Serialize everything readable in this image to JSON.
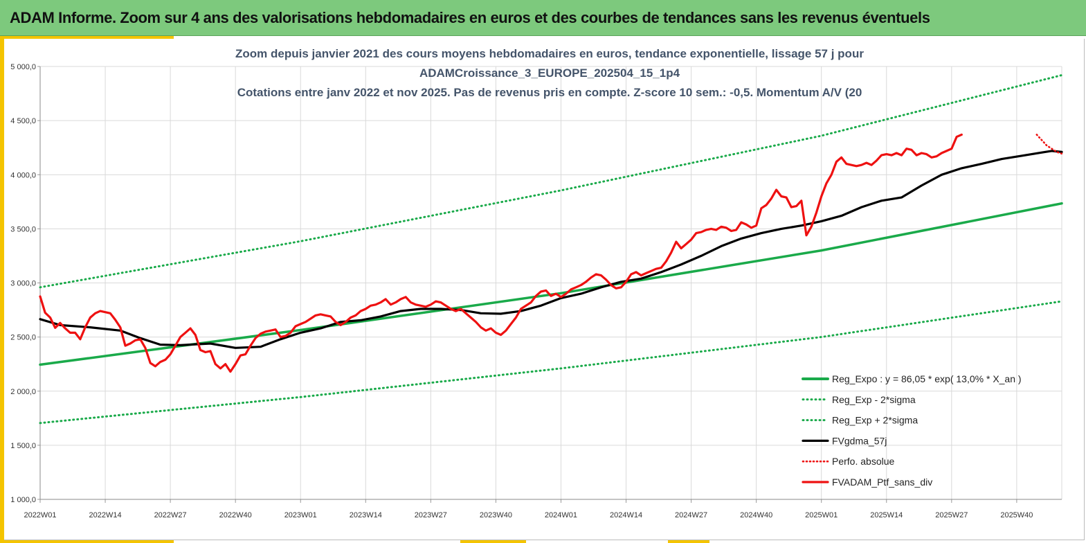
{
  "banner": {
    "title": "ADAM Informe. Zoom sur 4 ans des valorisations hebdomadaires en euros et des courbes de tendances sans les revenus éventuels"
  },
  "colors": {
    "banner_bg": "#7dc97d",
    "accent": "#f4c400",
    "trend": "#1aaa4a",
    "smooth": "#000000",
    "portfolio": "#ee1111",
    "title_text": "#44546a"
  },
  "chart_data": {
    "type": "line",
    "title_lines": [
      "Zoom depuis janvier 2021 des cours moyens hebdomadaires  en euros, tendance exponentielle, lissage 57 j pour",
      "ADAMCroissance_3_EUROPE_202504_15_1p4",
      "Cotations  entre janv 2022 et nov 2025. Pas de revenus pris en compte. Z-score 10 sem.: -0,5. Momentum A/V (20"
    ],
    "x_tick_labels": [
      "2022W01",
      "2022W14",
      "2022W27",
      "2022W40",
      "2023W01",
      "2023W14",
      "2023W27",
      "2023W40",
      "2024W01",
      "2024W14",
      "2024W27",
      "2024W40",
      "2025W01",
      "2025W14",
      "2025W27",
      "2025W40"
    ],
    "x_tick_weeks": [
      0,
      13,
      26,
      39,
      52,
      65,
      78,
      91,
      104,
      117,
      130,
      143,
      156,
      169,
      182,
      195
    ],
    "x_range_weeks": [
      0,
      204
    ],
    "y_tick_labels": [
      "1 000,0",
      "1 500,0",
      "2 000,0",
      "2 500,0",
      "3 000,0",
      "3 500,0",
      "4 000,0",
      "4 500,0",
      "5 000,0"
    ],
    "y_tick_values": [
      1000,
      1500,
      2000,
      2500,
      3000,
      3500,
      4000,
      4500,
      5000
    ],
    "ylim": [
      1000,
      5000
    ],
    "grid": true,
    "legend_position": "bottom-right",
    "series": [
      {
        "name": "Reg_Expo : y = 86,05 * exp( 13,0% *  X_an )",
        "key": "reg",
        "style": "solid",
        "color": "#1aaa4a",
        "points": [
          [
            0,
            2245
          ],
          [
            52,
            2565
          ],
          [
            104,
            2905
          ],
          [
            156,
            3300
          ],
          [
            204,
            3735
          ]
        ]
      },
      {
        "name": "Reg_Exp - 2*sigma",
        "key": "reg_minus",
        "style": "dotted",
        "color": "#1aaa4a",
        "points": [
          [
            0,
            1705
          ],
          [
            52,
            1945
          ],
          [
            104,
            2210
          ],
          [
            156,
            2500
          ],
          [
            204,
            2830
          ]
        ]
      },
      {
        "name": "Reg_Exp + 2*sigma",
        "key": "reg_plus",
        "style": "dotted",
        "color": "#1aaa4a",
        "points": [
          [
            0,
            2960
          ],
          [
            52,
            3385
          ],
          [
            104,
            3855
          ],
          [
            156,
            4360
          ],
          [
            204,
            4920
          ]
        ]
      },
      {
        "name": "FVgdma_57j",
        "key": "smooth",
        "style": "solid",
        "color": "#000000",
        "points": [
          [
            0,
            2665
          ],
          [
            4,
            2610
          ],
          [
            10,
            2590
          ],
          [
            16,
            2560
          ],
          [
            20,
            2490
          ],
          [
            24,
            2430
          ],
          [
            28,
            2425
          ],
          [
            34,
            2440
          ],
          [
            39,
            2400
          ],
          [
            44,
            2410
          ],
          [
            48,
            2480
          ],
          [
            52,
            2540
          ],
          [
            56,
            2580
          ],
          [
            60,
            2640
          ],
          [
            64,
            2655
          ],
          [
            68,
            2690
          ],
          [
            72,
            2740
          ],
          [
            76,
            2760
          ],
          [
            80,
            2760
          ],
          [
            84,
            2750
          ],
          [
            88,
            2720
          ],
          [
            92,
            2715
          ],
          [
            96,
            2740
          ],
          [
            100,
            2790
          ],
          [
            104,
            2860
          ],
          [
            108,
            2900
          ],
          [
            112,
            2960
          ],
          [
            116,
            3010
          ],
          [
            120,
            3040
          ],
          [
            124,
            3100
          ],
          [
            128,
            3170
          ],
          [
            132,
            3250
          ],
          [
            136,
            3340
          ],
          [
            140,
            3410
          ],
          [
            144,
            3460
          ],
          [
            148,
            3500
          ],
          [
            152,
            3530
          ],
          [
            156,
            3570
          ],
          [
            160,
            3620
          ],
          [
            164,
            3700
          ],
          [
            168,
            3760
          ],
          [
            172,
            3790
          ],
          [
            176,
            3900
          ],
          [
            180,
            4000
          ],
          [
            184,
            4060
          ],
          [
            188,
            4100
          ],
          [
            192,
            4145
          ],
          [
            196,
            4175
          ],
          [
            200,
            4205
          ],
          [
            202,
            4220
          ],
          [
            204,
            4210
          ]
        ]
      },
      {
        "name": "Perfo. absolue",
        "key": "perfo",
        "style": "dotted",
        "color": "#ee1111",
        "points": [
          [
            199,
            4370
          ],
          [
            200,
            4320
          ],
          [
            201,
            4270
          ],
          [
            202,
            4240
          ],
          [
            203,
            4210
          ],
          [
            204,
            4195
          ]
        ]
      },
      {
        "name": "FVADAM_Ptf_sans_div",
        "key": "portfolio",
        "style": "solid",
        "color": "#ee1111",
        "points": [
          [
            0,
            2875
          ],
          [
            1,
            2725
          ],
          [
            2,
            2680
          ],
          [
            3,
            2585
          ],
          [
            4,
            2630
          ],
          [
            5,
            2580
          ],
          [
            6,
            2540
          ],
          [
            7,
            2540
          ],
          [
            8,
            2480
          ],
          [
            9,
            2590
          ],
          [
            10,
            2680
          ],
          [
            11,
            2720
          ],
          [
            12,
            2740
          ],
          [
            13,
            2730
          ],
          [
            14,
            2720
          ],
          [
            15,
            2660
          ],
          [
            16,
            2590
          ],
          [
            17,
            2420
          ],
          [
            18,
            2440
          ],
          [
            19,
            2470
          ],
          [
            20,
            2480
          ],
          [
            21,
            2400
          ],
          [
            22,
            2260
          ],
          [
            23,
            2230
          ],
          [
            24,
            2270
          ],
          [
            25,
            2290
          ],
          [
            26,
            2340
          ],
          [
            27,
            2420
          ],
          [
            28,
            2500
          ],
          [
            29,
            2540
          ],
          [
            30,
            2580
          ],
          [
            31,
            2520
          ],
          [
            32,
            2380
          ],
          [
            33,
            2360
          ],
          [
            34,
            2370
          ],
          [
            35,
            2250
          ],
          [
            36,
            2210
          ],
          [
            37,
            2250
          ],
          [
            38,
            2180
          ],
          [
            39,
            2250
          ],
          [
            40,
            2330
          ],
          [
            41,
            2340
          ],
          [
            42,
            2420
          ],
          [
            43,
            2490
          ],
          [
            44,
            2530
          ],
          [
            45,
            2550
          ],
          [
            46,
            2560
          ],
          [
            47,
            2570
          ],
          [
            48,
            2500
          ],
          [
            49,
            2510
          ],
          [
            50,
            2540
          ],
          [
            51,
            2600
          ],
          [
            52,
            2620
          ],
          [
            53,
            2640
          ],
          [
            54,
            2670
          ],
          [
            55,
            2700
          ],
          [
            56,
            2710
          ],
          [
            57,
            2700
          ],
          [
            58,
            2690
          ],
          [
            59,
            2640
          ],
          [
            60,
            2610
          ],
          [
            61,
            2640
          ],
          [
            62,
            2680
          ],
          [
            63,
            2700
          ],
          [
            64,
            2740
          ],
          [
            65,
            2760
          ],
          [
            66,
            2790
          ],
          [
            67,
            2800
          ],
          [
            68,
            2820
          ],
          [
            69,
            2850
          ],
          [
            70,
            2800
          ],
          [
            71,
            2820
          ],
          [
            72,
            2850
          ],
          [
            73,
            2870
          ],
          [
            74,
            2820
          ],
          [
            75,
            2800
          ],
          [
            76,
            2790
          ],
          [
            77,
            2780
          ],
          [
            78,
            2800
          ],
          [
            79,
            2830
          ],
          [
            80,
            2820
          ],
          [
            81,
            2790
          ],
          [
            82,
            2760
          ],
          [
            83,
            2740
          ],
          [
            84,
            2760
          ],
          [
            85,
            2720
          ],
          [
            86,
            2680
          ],
          [
            87,
            2640
          ],
          [
            88,
            2590
          ],
          [
            89,
            2560
          ],
          [
            90,
            2580
          ],
          [
            91,
            2540
          ],
          [
            92,
            2520
          ],
          [
            93,
            2560
          ],
          [
            94,
            2620
          ],
          [
            95,
            2680
          ],
          [
            96,
            2760
          ],
          [
            97,
            2790
          ],
          [
            98,
            2820
          ],
          [
            99,
            2880
          ],
          [
            100,
            2920
          ],
          [
            101,
            2930
          ],
          [
            102,
            2880
          ],
          [
            103,
            2900
          ],
          [
            104,
            2870
          ],
          [
            105,
            2900
          ],
          [
            106,
            2940
          ],
          [
            107,
            2960
          ],
          [
            108,
            2980
          ],
          [
            109,
            3010
          ],
          [
            110,
            3050
          ],
          [
            111,
            3080
          ],
          [
            112,
            3070
          ],
          [
            113,
            3030
          ],
          [
            114,
            2980
          ],
          [
            115,
            2950
          ],
          [
            116,
            2960
          ],
          [
            117,
            3010
          ],
          [
            118,
            3080
          ],
          [
            119,
            3100
          ],
          [
            120,
            3070
          ],
          [
            121,
            3090
          ],
          [
            122,
            3110
          ],
          [
            123,
            3130
          ],
          [
            124,
            3140
          ],
          [
            125,
            3200
          ],
          [
            126,
            3280
          ],
          [
            127,
            3380
          ],
          [
            128,
            3320
          ],
          [
            129,
            3360
          ],
          [
            130,
            3400
          ],
          [
            131,
            3460
          ],
          [
            132,
            3470
          ],
          [
            133,
            3490
          ],
          [
            134,
            3500
          ],
          [
            135,
            3490
          ],
          [
            136,
            3520
          ],
          [
            137,
            3510
          ],
          [
            138,
            3480
          ],
          [
            139,
            3490
          ],
          [
            140,
            3560
          ],
          [
            141,
            3540
          ],
          [
            142,
            3510
          ],
          [
            143,
            3530
          ],
          [
            144,
            3690
          ],
          [
            145,
            3720
          ],
          [
            146,
            3780
          ],
          [
            147,
            3860
          ],
          [
            148,
            3800
          ],
          [
            149,
            3790
          ],
          [
            150,
            3700
          ],
          [
            151,
            3710
          ],
          [
            152,
            3760
          ],
          [
            153,
            3440
          ],
          [
            154,
            3520
          ],
          [
            155,
            3650
          ],
          [
            156,
            3800
          ],
          [
            157,
            3920
          ],
          [
            158,
            4000
          ],
          [
            159,
            4120
          ],
          [
            160,
            4160
          ],
          [
            161,
            4100
          ],
          [
            162,
            4090
          ],
          [
            163,
            4080
          ],
          [
            164,
            4090
          ],
          [
            165,
            4110
          ],
          [
            166,
            4090
          ],
          [
            167,
            4130
          ],
          [
            168,
            4180
          ],
          [
            169,
            4190
          ],
          [
            170,
            4180
          ],
          [
            171,
            4200
          ],
          [
            172,
            4180
          ],
          [
            173,
            4240
          ],
          [
            174,
            4230
          ],
          [
            175,
            4180
          ],
          [
            176,
            4200
          ],
          [
            177,
            4190
          ],
          [
            178,
            4160
          ],
          [
            179,
            4170
          ],
          [
            180,
            4200
          ],
          [
            181,
            4220
          ],
          [
            182,
            4240
          ],
          [
            183,
            4350
          ],
          [
            184,
            4370
          ]
        ]
      }
    ]
  }
}
